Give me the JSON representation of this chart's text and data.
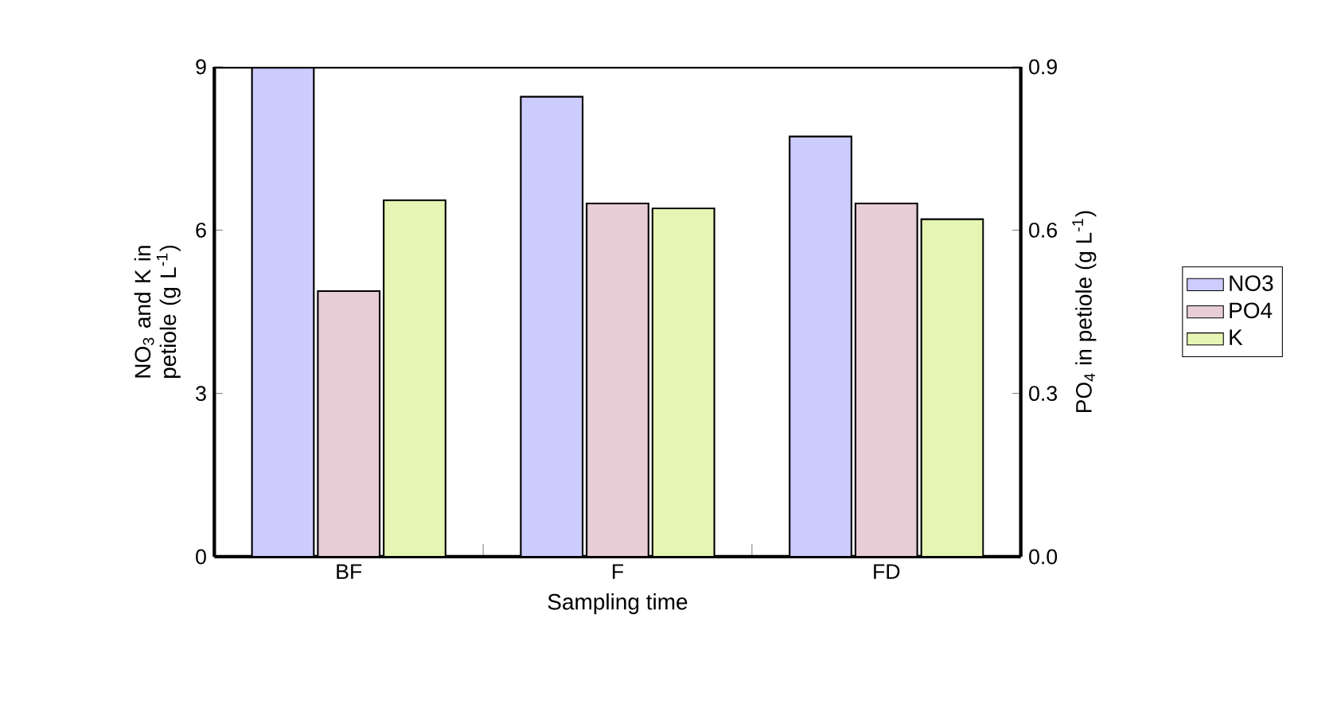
{
  "chart_data": {
    "type": "bar",
    "xlabel": "Sampling time",
    "ylabel": "NO$_{3}$ and K in petiole (g L$^{-1}$)",
    "y2label": "PO$_{4}$ in petiole (g L$^{-1}$)",
    "categories": [
      "BF",
      "F",
      "FD"
    ],
    "series": [
      {
        "name": "NO3",
        "color": "#ccccff",
        "values": [
          9.0,
          8.45,
          7.72
        ]
      },
      {
        "name": "PO4",
        "color": "#e8cdd6",
        "values": [
          0.488,
          0.649,
          0.649
        ],
        "axis": "y2"
      },
      {
        "name": "K",
        "color": "#e6f5b4",
        "values": [
          6.55,
          6.4,
          6.2
        ]
      }
    ],
    "ylim": [
      0,
      9
    ],
    "yticks": [
      0,
      3,
      6,
      9
    ],
    "y2lim": [
      0,
      0.9
    ],
    "y2ticks": [
      {
        "value": 0,
        "label": "0.0"
      },
      {
        "value": 0.3,
        "label": "0.3"
      },
      {
        "value": 0.6,
        "label": "0.6"
      },
      {
        "value": 0.9,
        "label": "0.9"
      }
    ],
    "legend": "right",
    "grid": false
  }
}
